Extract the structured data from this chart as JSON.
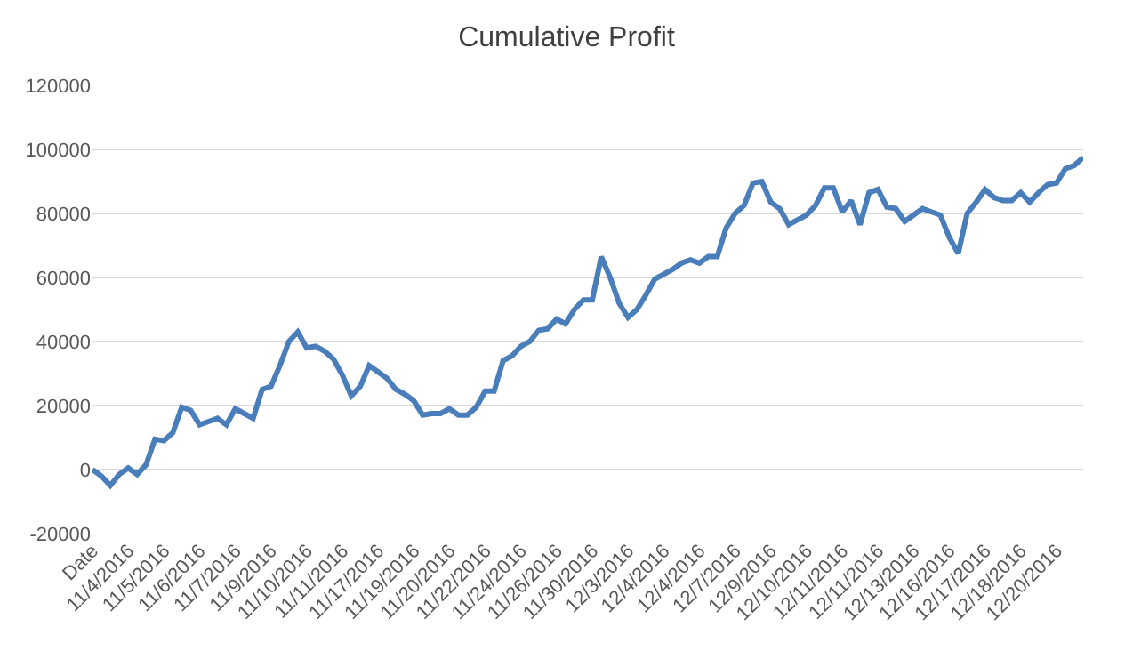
{
  "chart_data": {
    "type": "line",
    "title": "Cumulative Profit",
    "categories": [
      "Date",
      null,
      null,
      null,
      "11/4/2016",
      null,
      null,
      null,
      "11/5/2016",
      null,
      null,
      null,
      "11/6/2016",
      null,
      null,
      null,
      "11/7/2016",
      null,
      null,
      null,
      "11/9/2016",
      null,
      null,
      null,
      "11/10/2016",
      null,
      null,
      null,
      "11/11/2016",
      null,
      null,
      null,
      "11/17/2016",
      null,
      null,
      null,
      "11/19/2016",
      null,
      null,
      null,
      "11/20/2016",
      null,
      null,
      null,
      "11/22/2016",
      null,
      null,
      null,
      "11/24/2016",
      null,
      null,
      null,
      "11/26/2016",
      null,
      null,
      null,
      "11/30/2016",
      null,
      null,
      null,
      "12/3/2016",
      null,
      null,
      null,
      "12/4/2016",
      null,
      null,
      null,
      "12/4/2016",
      null,
      null,
      null,
      "12/7/2016",
      null,
      null,
      null,
      "12/9/2016",
      null,
      null,
      null,
      "12/10/2016",
      null,
      null,
      null,
      "12/11/2016",
      null,
      null,
      null,
      "12/11/2016",
      null,
      null,
      null,
      "12/13/2016",
      null,
      null,
      null,
      "12/16/2016",
      null,
      null,
      null,
      "12/17/2016",
      null,
      null,
      null,
      "12/18/2016",
      null,
      null,
      null,
      "12/20/2016",
      null,
      null,
      null
    ],
    "series": [
      {
        "color": "#4a7ebb",
        "values": [
          0,
          -2000,
          -5000,
          -1500,
          500,
          -1500,
          1500,
          9500,
          9000,
          11500,
          19500,
          18500,
          14000,
          15000,
          16000,
          14000,
          19000,
          17500,
          16000,
          25000,
          26000,
          32500,
          40000,
          43000,
          38000,
          38500,
          37000,
          34500,
          29500,
          23000,
          26000,
          32500,
          30500,
          28500,
          25000,
          23500,
          21500,
          17000,
          17500,
          17500,
          19000,
          17000,
          17000,
          19500,
          24500,
          24500,
          34000,
          35500,
          38500,
          40000,
          43500,
          44000,
          47000,
          45500,
          50000,
          53000,
          53000,
          66500,
          60000,
          52000,
          47500,
          50000,
          54500,
          59500,
          61000,
          62500,
          64500,
          65500,
          64500,
          66500,
          66500,
          75500,
          80000,
          82500,
          89500,
          90000,
          83500,
          81500,
          76500,
          78000,
          79500,
          82500,
          88000,
          88000,
          80500,
          84000,
          76500,
          86500,
          87500,
          82000,
          81500,
          77500,
          79500,
          81500,
          80500,
          79500,
          72500,
          67500,
          80000,
          83500,
          87500,
          85000,
          84000,
          84000,
          86500,
          83500,
          86500,
          89000,
          89500,
          94000,
          95000,
          97500
        ]
      }
    ],
    "ylim": [
      -20000,
      120000
    ],
    "yticks": [
      -20000,
      0,
      20000,
      40000,
      60000,
      80000,
      100000,
      120000
    ],
    "grid": "y",
    "marker": "none",
    "line_style": "solid"
  }
}
